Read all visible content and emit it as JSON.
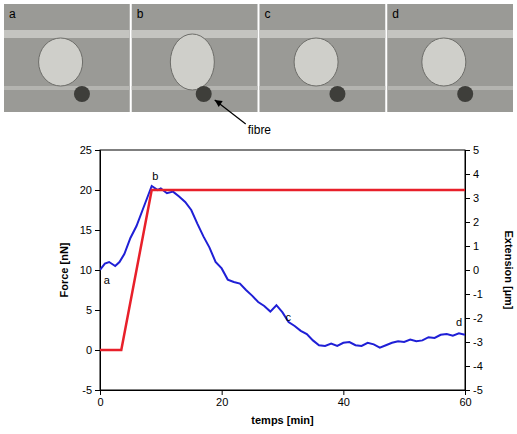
{
  "chart_data": {
    "type": "line",
    "x_label": "temps [min]",
    "y_label": "Force [nN]",
    "y2_label": "Extension [µm]",
    "xlim": [
      0,
      60
    ],
    "xticks": [
      0,
      20,
      40,
      60
    ],
    "ylim": [
      -5,
      25
    ],
    "yticks": [
      -5,
      0,
      5,
      10,
      15,
      20,
      25
    ],
    "y2lim": [
      -5,
      5
    ],
    "y2ticks": [
      -5,
      -4,
      -3,
      -2,
      -1,
      0,
      1,
      2,
      3,
      4,
      5
    ],
    "grid": false,
    "series": [
      {
        "name": "Force",
        "color": "#1f1fd6",
        "axis": "y",
        "x": [
          0,
          0.8,
          1.5,
          2.5,
          3.2,
          4,
          5,
          6,
          7,
          8,
          8.5,
          9.5,
          10,
          11,
          12,
          13,
          14,
          15,
          16,
          17,
          18,
          19,
          20,
          21,
          22,
          23,
          24,
          25,
          26,
          27,
          28,
          29,
          30,
          31,
          32,
          33,
          34,
          35,
          36,
          37,
          38,
          39,
          40,
          41,
          42,
          43,
          44,
          45,
          46,
          47,
          48,
          49,
          50,
          51,
          52,
          53,
          54,
          55,
          56,
          57,
          58,
          59,
          60
        ],
        "values": [
          10,
          10.8,
          11,
          10.5,
          11,
          12,
          14,
          15.5,
          17.5,
          19.5,
          20.5,
          20,
          20.2,
          19.6,
          19.8,
          19.2,
          18.5,
          17.5,
          15.8,
          14.2,
          12.8,
          11,
          10.2,
          8.8,
          8.5,
          8.3,
          7.5,
          6.8,
          6,
          5.5,
          4.8,
          5.6,
          4.7,
          3.5,
          3,
          2.4,
          2,
          1.2,
          0.6,
          0.5,
          0.8,
          0.5,
          0.9,
          1,
          0.6,
          0.5,
          0.9,
          0.7,
          0.3,
          0.6,
          0.9,
          1.1,
          1,
          1.3,
          1.1,
          1.2,
          1.6,
          1.5,
          1.9,
          2,
          1.8,
          2.1,
          1.9
        ]
      },
      {
        "name": "Extension",
        "color": "#e8202a",
        "axis": "y2",
        "x": [
          0,
          3.5,
          8.5,
          60
        ],
        "values": [
          -3.33,
          -3.33,
          3.33,
          3.33
        ]
      }
    ],
    "annotations": [
      {
        "text": "a",
        "x": 0.6,
        "y": 8.3
      },
      {
        "text": "b",
        "x": 8.6,
        "y": 21.3
      },
      {
        "text": "c",
        "x": 30.5,
        "y": 3.6
      },
      {
        "text": "d",
        "x": 58.5,
        "y": 3.0
      }
    ]
  },
  "photos": {
    "labels": [
      "a",
      "b",
      "c",
      "d"
    ],
    "annotation": "fibre"
  }
}
